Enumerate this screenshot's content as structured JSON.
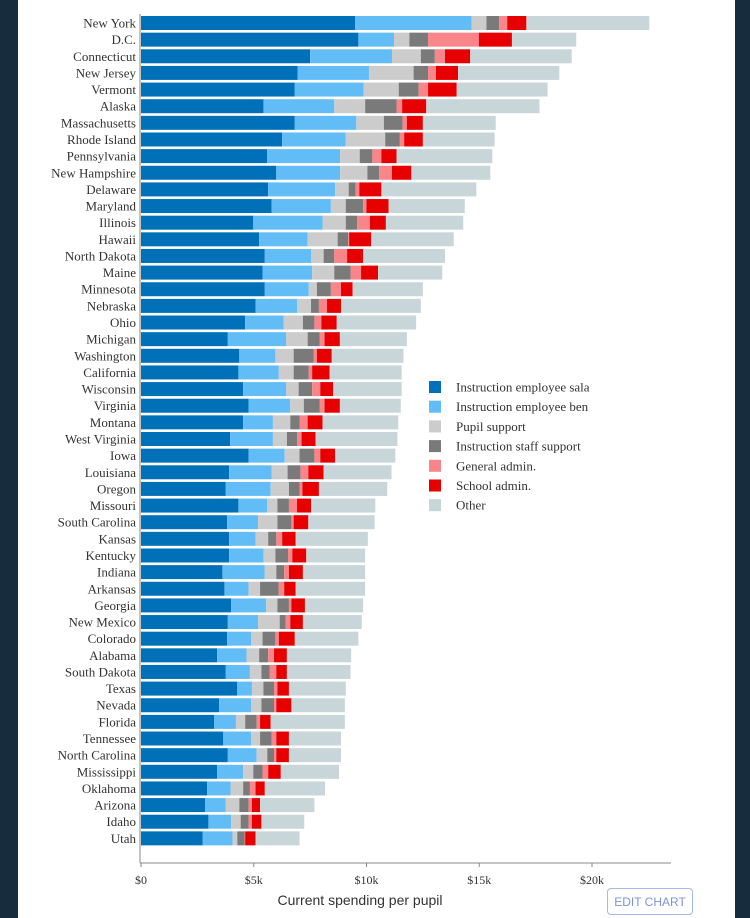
{
  "chart_data": {
    "type": "bar",
    "orientation": "horizontal",
    "stacked": true,
    "xlabel": "Current spending per pupil",
    "xlim": [
      0,
      23500
    ],
    "xticks": [
      0,
      5000,
      10000,
      15000,
      20000
    ],
    "xtick_labels": [
      "$0",
      "$5k",
      "$10k",
      "$15k",
      "$20k"
    ],
    "legend_position": "right",
    "grid": false,
    "series": [
      {
        "name": "Instruction employee sala",
        "color": "#0071b8"
      },
      {
        "name": "Instruction employee ben",
        "color": "#62bdf6"
      },
      {
        "name": "Pupil support",
        "color": "#cccccc"
      },
      {
        "name": "Instruction staff support",
        "color": "#7a7a7a"
      },
      {
        "name": "General admin.",
        "color": "#f7858a"
      },
      {
        "name": "School admin.",
        "color": "#e60000"
      },
      {
        "name": "Other",
        "color": "#c8d6da"
      }
    ],
    "categories": [
      "New York",
      "D.C.",
      "Connecticut",
      "New Jersey",
      "Vermont",
      "Alaska",
      "Massachusetts",
      "Rhode Island",
      "Pennsylvania",
      "New Hampshire",
      "Delaware",
      "Maryland",
      "Illinois",
      "Hawaii",
      "North Dakota",
      "Maine",
      "Minnesota",
      "Nebraska",
      "Ohio",
      "Michigan",
      "Washington",
      "California",
      "Wisconsin",
      "Virginia",
      "Montana",
      "West Virginia",
      "Iowa",
      "Louisiana",
      "Oregon",
      "Missouri",
      "South Carolina",
      "Kansas",
      "Kentucky",
      "Indiana",
      "Arkansas",
      "Georgia",
      "New Mexico",
      "Colorado",
      "Alabama",
      "South Dakota",
      "Texas",
      "Nevada",
      "Florida",
      "Tennessee",
      "North Carolina",
      "Mississippi",
      "Oklahoma",
      "Arizona",
      "Idaho",
      "Utah"
    ],
    "values": [
      [
        9490,
        5170,
        660,
        560,
        360,
        850,
        5450
      ],
      [
        9640,
        1580,
        680,
        830,
        2250,
        1470,
        2850
      ],
      [
        7500,
        3630,
        1280,
        620,
        450,
        1120,
        4500
      ],
      [
        6940,
        3170,
        1980,
        640,
        350,
        980,
        4490
      ],
      [
        6820,
        3050,
        1560,
        880,
        420,
        1270,
        4030
      ],
      [
        5430,
        3140,
        1370,
        1390,
        250,
        1070,
        5020
      ],
      [
        6820,
        2730,
        1220,
        830,
        190,
        710,
        3230
      ],
      [
        6260,
        2820,
        1750,
        650,
        190,
        830,
        3180
      ],
      [
        5600,
        3230,
        870,
        560,
        400,
        670,
        4250
      ],
      [
        6000,
        2830,
        1210,
        520,
        570,
        860,
        3500
      ],
      [
        5640,
        2970,
        600,
        300,
        170,
        980,
        4210
      ],
      [
        5790,
        2630,
        660,
        770,
        150,
        980,
        3380
      ],
      [
        4980,
        3080,
        1020,
        510,
        560,
        710,
        3430
      ],
      [
        5240,
        2150,
        1330,
        470,
        40,
        980,
        3660
      ],
      [
        5490,
        2050,
        560,
        470,
        570,
        710,
        3630
      ],
      [
        5390,
        2200,
        980,
        720,
        470,
        750,
        2850
      ],
      [
        5490,
        1950,
        360,
        620,
        450,
        510,
        3120
      ],
      [
        5080,
        1840,
        620,
        350,
        360,
        620,
        3540
      ],
      [
        4620,
        1700,
        860,
        510,
        310,
        680,
        3520
      ],
      [
        3850,
        2580,
        960,
        540,
        210,
        680,
        2970
      ],
      [
        4360,
        1600,
        810,
        880,
        150,
        660,
        3180
      ],
      [
        4320,
        1790,
        660,
        670,
        150,
        770,
        3200
      ],
      [
        4530,
        1900,
        560,
        600,
        360,
        570,
        3040
      ],
      [
        4770,
        1850,
        600,
        710,
        210,
        680,
        2700
      ],
      [
        4530,
        1320,
        770,
        410,
        360,
        660,
        3360
      ],
      [
        3950,
        1900,
        620,
        450,
        200,
        620,
        3630
      ],
      [
        4770,
        1600,
        660,
        660,
        260,
        660,
        2670
      ],
      [
        3910,
        1880,
        710,
        570,
        350,
        680,
        3010
      ],
      [
        3760,
        1990,
        810,
        470,
        130,
        730,
        3030
      ],
      [
        4320,
        1280,
        450,
        510,
        360,
        620,
        2850
      ],
      [
        3820,
        1370,
        860,
        620,
        100,
        650,
        2940
      ],
      [
        3910,
        1170,
        560,
        360,
        260,
        600,
        3200
      ],
      [
        3910,
        1520,
        530,
        560,
        190,
        620,
        2610
      ],
      [
        3610,
        1880,
        510,
        350,
        210,
        620,
        2760
      ],
      [
        3700,
        1070,
        510,
        830,
        240,
        510,
        3080
      ],
      [
        4000,
        1550,
        500,
        510,
        110,
        600,
        2580
      ],
      [
        3850,
        1340,
        960,
        260,
        210,
        560,
        2610
      ],
      [
        3820,
        1070,
        500,
        570,
        150,
        710,
        2820
      ],
      [
        3380,
        1300,
        560,
        400,
        260,
        570,
        2850
      ],
      [
        3760,
        1070,
        510,
        360,
        300,
        470,
        2820
      ],
      [
        4270,
        650,
        510,
        470,
        150,
        510,
        2520
      ],
      [
        3460,
        1430,
        450,
        560,
        100,
        670,
        2370
      ],
      [
        3250,
        960,
        410,
        510,
        150,
        470,
        3290
      ],
      [
        3650,
        1240,
        390,
        510,
        210,
        560,
        2310
      ],
      [
        3850,
        1280,
        470,
        300,
        100,
        560,
        2310
      ],
      [
        3380,
        1150,
        450,
        410,
        250,
        560,
        2580
      ],
      [
        2930,
        1040,
        560,
        300,
        250,
        410,
        2670
      ],
      [
        2840,
        920,
        600,
        410,
        150,
        360,
        2410
      ],
      [
        2990,
        1010,
        420,
        350,
        150,
        420,
        1900
      ],
      [
        2740,
        1320,
        210,
        320,
        30,
        460,
        1950
      ]
    ]
  },
  "edit_button": {
    "label": "EDIT CHART"
  }
}
